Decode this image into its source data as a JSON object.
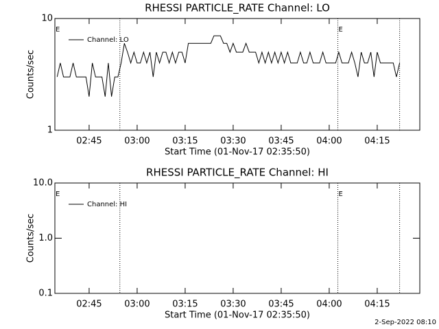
{
  "chart_data": [
    {
      "type": "line",
      "title": "RHESSI PARTICLE_RATE Channel: LO",
      "xlabel": "Start Time (01-Nov-17 02:35:50)",
      "ylabel": "Counts/sec",
      "x": [
        155,
        156,
        157,
        158,
        159,
        160,
        161,
        162,
        163,
        164,
        165,
        166,
        167,
        168,
        169,
        170,
        171,
        172,
        173,
        174,
        175,
        176,
        177,
        178,
        179,
        180,
        181,
        182,
        183,
        184,
        185,
        186,
        187,
        188,
        189,
        190,
        191,
        192,
        193,
        194,
        195,
        196,
        197,
        198,
        199,
        200,
        201,
        202,
        203,
        204,
        205,
        206,
        207,
        208,
        209,
        210,
        211,
        212,
        213,
        214,
        215,
        216,
        217,
        218,
        219,
        220,
        221,
        222,
        223,
        224,
        225,
        226,
        227,
        228,
        229,
        230,
        231,
        232,
        233,
        234,
        235,
        236,
        237,
        238,
        239,
        240,
        241,
        242,
        243,
        244,
        245,
        246,
        247,
        248,
        249,
        250,
        251,
        252,
        253,
        254,
        255,
        256,
        257,
        258,
        259,
        260,
        261,
        262
      ],
      "series": [
        {
          "name": "Channel: LO",
          "color": "#000000",
          "values": [
            3,
            4,
            3,
            3,
            3,
            4,
            3,
            3,
            3,
            3,
            2,
            4,
            3,
            3,
            3,
            2,
            4,
            2,
            3,
            3,
            4,
            6,
            5,
            4,
            5,
            4,
            4,
            5,
            4,
            5,
            3,
            5,
            4,
            5,
            5,
            4,
            5,
            4,
            5,
            5,
            4,
            6,
            6,
            6,
            6,
            6,
            6,
            6,
            6,
            7,
            7,
            7,
            6,
            6,
            5,
            6,
            5,
            5,
            5,
            6,
            5,
            5,
            5,
            4,
            5,
            4,
            5,
            4,
            5,
            4,
            5,
            4,
            5,
            4,
            4,
            4,
            5,
            4,
            4,
            5,
            4,
            4,
            4,
            5,
            4,
            4,
            4,
            4,
            5,
            4,
            4,
            4,
            5,
            4,
            3,
            5,
            4,
            4,
            5,
            3,
            5,
            4,
            4,
            4,
            4,
            4,
            3,
            4
          ]
        }
      ],
      "xlim": [
        154.3,
        268.3
      ],
      "xticks": [
        {
          "value": 165,
          "label": "02:45"
        },
        {
          "value": 180,
          "label": "03:00"
        },
        {
          "value": 195,
          "label": "03:15"
        },
        {
          "value": 210,
          "label": "03:30"
        },
        {
          "value": 225,
          "label": "03:45"
        },
        {
          "value": 240,
          "label": "04:00"
        },
        {
          "value": 255,
          "label": "04:15"
        }
      ],
      "ylim": [
        1,
        10
      ],
      "yticks": [
        1,
        10
      ],
      "ylog": true,
      "vlines": [
        174.6,
        242.7,
        262
      ],
      "annotations": [
        {
          "text": "E",
          "x": 154.3
        },
        {
          "text": "E",
          "x": 242.7
        }
      ],
      "legend": "upper left"
    },
    {
      "type": "line",
      "title": "RHESSI PARTICLE_RATE Channel: HI",
      "xlabel": "Start Time (01-Nov-17 02:35:50)",
      "ylabel": "Counts/sec",
      "x": [],
      "series": [
        {
          "name": "Channel: HI",
          "color": "#000000",
          "values": []
        }
      ],
      "xlim": [
        154.3,
        268.3
      ],
      "xticks": [
        {
          "value": 165,
          "label": "02:45"
        },
        {
          "value": 180,
          "label": "03:00"
        },
        {
          "value": 195,
          "label": "03:15"
        },
        {
          "value": 210,
          "label": "03:30"
        },
        {
          "value": 225,
          "label": "03:45"
        },
        {
          "value": 240,
          "label": "04:00"
        },
        {
          "value": 255,
          "label": "04:15"
        }
      ],
      "ylim": [
        0.1,
        10
      ],
      "yticks": [
        0.1,
        {
          "value": 1,
          "label": "1.0"
        },
        {
          "value": 10,
          "label": "10.0"
        }
      ],
      "ylog": true,
      "vlines": [
        174.6,
        242.7,
        262
      ],
      "annotations": [
        {
          "text": "E",
          "x": 154.3
        },
        {
          "text": "E",
          "x": 242.7
        }
      ],
      "legend": "upper left"
    }
  ],
  "footer": "2-Sep-2022 08:10"
}
